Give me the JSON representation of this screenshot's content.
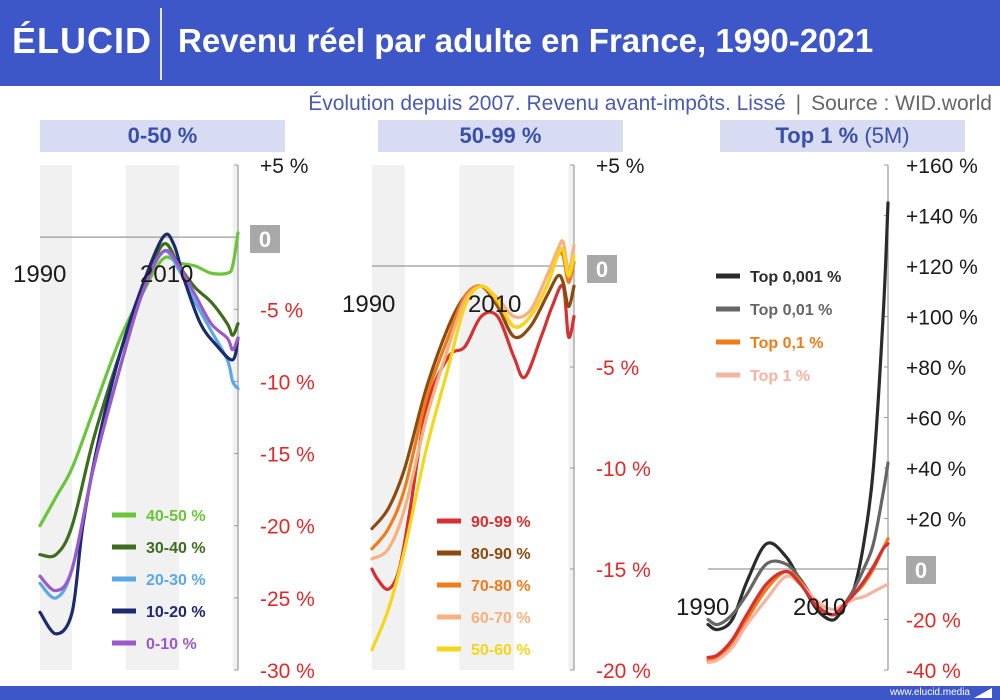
{
  "header": {
    "logo": "ÉLUCID",
    "title": "Revenu réel par adulte en France, 1990-2021"
  },
  "subtitle": {
    "main": "Évolution depuis 2007. Revenu avant-impôts. Lissé",
    "separator": "|",
    "source": "Source : WID.world"
  },
  "footer": {
    "url": "www.elucid.media"
  },
  "colors": {
    "brand": "#3d57c9",
    "panel_title_bg": "#d8dcf3",
    "negative_tick": "#e02a2a"
  },
  "chart_data": [
    {
      "type": "line",
      "title": "0-50 %",
      "x_tick": [
        "1990",
        "2010"
      ],
      "xlim": [
        1984,
        2021
      ],
      "ylim": [
        -30,
        5
      ],
      "y_ticks": [
        "+5 %",
        "0",
        "-5 %",
        "-10 %",
        "-15 %",
        "-20 %",
        "-25 %",
        "-30 %"
      ],
      "series": [
        {
          "name": "40-50 %",
          "color": "#6ac53a",
          "x": [
            1984,
            1987,
            1990,
            1994,
            1999,
            2003,
            2007,
            2010,
            2013,
            2016,
            2019,
            2020,
            2021
          ],
          "y": [
            -20,
            -18,
            -16,
            -12,
            -7,
            -4,
            -1.5,
            -1.8,
            -2,
            -2.5,
            -2.5,
            -2,
            0.3
          ]
        },
        {
          "name": "30-40 %",
          "color": "#3d6e1e",
          "x": [
            1984,
            1987,
            1990,
            1994,
            1999,
            2003,
            2007,
            2010,
            2013,
            2016,
            2019,
            2020,
            2021
          ],
          "y": [
            -22,
            -22,
            -20,
            -14,
            -8,
            -4,
            -0.5,
            -2,
            -3.5,
            -4.5,
            -6,
            -6.8,
            -6
          ]
        },
        {
          "name": "20-30 %",
          "color": "#5aa9e6",
          "x": [
            1984,
            1987,
            1990,
            1994,
            1999,
            2003,
            2007,
            2010,
            2013,
            2016,
            2019,
            2020,
            2021
          ],
          "y": [
            -24,
            -25,
            -23,
            -16,
            -9,
            -4,
            -1,
            -2.3,
            -4.5,
            -6.5,
            -8.5,
            -10,
            -10.5
          ]
        },
        {
          "name": "10-20 %",
          "color": "#1c2a6e",
          "x": [
            1984,
            1987,
            1990,
            1992,
            1995,
            1999,
            2003,
            2007,
            2009,
            2011,
            2014,
            2017,
            2020,
            2021
          ],
          "y": [
            -26,
            -27.5,
            -26,
            -20,
            -14,
            -8,
            -3.5,
            0,
            -0.5,
            -3,
            -6,
            -7.5,
            -8.5,
            -7
          ]
        },
        {
          "name": "0-10 %",
          "color": "#9b59c9",
          "x": [
            1984,
            1987,
            1990,
            1994,
            1999,
            2003,
            2007,
            2010,
            2013,
            2016,
            2019,
            2020,
            2021
          ],
          "y": [
            -23.5,
            -24.5,
            -23,
            -16,
            -9,
            -4,
            -1,
            -2,
            -4,
            -6,
            -7,
            -7.8,
            -7
          ]
        }
      ]
    },
    {
      "type": "line",
      "title": "50-99 %",
      "x_tick": [
        "1990",
        "2010"
      ],
      "xlim": [
        1984,
        2021
      ],
      "ylim": [
        -20,
        5
      ],
      "y_ticks": [
        "+5 %",
        "0",
        "-5 %",
        "-10 %",
        "-15 %",
        "-20 %"
      ],
      "series": [
        {
          "name": "90-99 %",
          "color": "#d63030",
          "x": [
            1984,
            1985,
            1987,
            1989,
            1991,
            1994,
            1998,
            2001,
            2004,
            2007,
            2010,
            2012,
            2015,
            2017,
            2019,
            2020,
            2021
          ],
          "y": [
            -15,
            -15.5,
            -16,
            -15,
            -12,
            -7,
            -4.5,
            -4,
            -2.5,
            -2.5,
            -4.5,
            -5.5,
            -3.5,
            -2,
            -1,
            -3.5,
            -2.5
          ]
        },
        {
          "name": "80-90 %",
          "color": "#8b4a10",
          "x": [
            1984,
            1987,
            1990,
            1994,
            1998,
            2001,
            2004,
            2007,
            2010,
            2013,
            2016,
            2018,
            2019,
            2020,
            2021
          ],
          "y": [
            -13,
            -12,
            -10,
            -6,
            -3,
            -1.5,
            -1,
            -2,
            -3.5,
            -3,
            -1.5,
            -0.5,
            -0.8,
            -2,
            -1
          ]
        },
        {
          "name": "70-80 %",
          "color": "#f07b1a",
          "x": [
            1984,
            1987,
            1990,
            1994,
            1998,
            2001,
            2004,
            2007,
            2010,
            2013,
            2016,
            2018,
            2019,
            2020,
            2021
          ],
          "y": [
            -14,
            -13,
            -11,
            -6.5,
            -3.5,
            -1.5,
            -1,
            -1.8,
            -3,
            -2.5,
            -1,
            0.5,
            0.5,
            -0.8,
            0.2
          ]
        },
        {
          "name": "60-70 %",
          "color": "#f6b17e",
          "x": [
            1984,
            1987,
            1990,
            1994,
            1998,
            2001,
            2004,
            2007,
            2010,
            2013,
            2016,
            2018,
            2019,
            2020,
            2021
          ],
          "y": [
            -14.5,
            -14,
            -12,
            -7.5,
            -4,
            -1.7,
            -1,
            -1.6,
            -2.5,
            -2.2,
            -0.5,
            0.8,
            1.2,
            -0.2,
            1
          ]
        },
        {
          "name": "50-60 %",
          "color": "#f7d51a",
          "x": [
            1984,
            1987,
            1990,
            1994,
            1998,
            2001,
            2004,
            2007,
            2010,
            2013,
            2016,
            2018,
            2019,
            2020,
            2021
          ],
          "y": [
            -19,
            -17,
            -14,
            -9,
            -5,
            -2,
            -1,
            -1.7,
            -3,
            -2.5,
            -1,
            0.5,
            0.8,
            -0.5,
            0.5
          ]
        }
      ]
    },
    {
      "type": "line",
      "title": "Top 1 %",
      "title_suffix": "(5M)",
      "x_tick": [
        "1990",
        "2010"
      ],
      "xlim": [
        1984,
        2021
      ],
      "ylim": [
        -40,
        160
      ],
      "y_ticks": [
        "+160 %",
        "+140 %",
        "+120 %",
        "+100 %",
        "+80 %",
        "+60 %",
        "+40 %",
        "+20 %",
        "0",
        "-20 %",
        "-40 %"
      ],
      "series": [
        {
          "name": "Top 0,001 %",
          "color": "#2b2b2b",
          "x": [
            1984,
            1986,
            1989,
            1992,
            1996,
            2000,
            2003,
            2006,
            2008,
            2010,
            2012,
            2014,
            2016,
            2018,
            2020,
            2021
          ],
          "y": [
            -22,
            -24,
            -20,
            -5,
            10,
            5,
            -5,
            -15,
            -19,
            -20,
            -15,
            -8,
            10,
            40,
            100,
            145
          ]
        },
        {
          "name": "Top 0,01 %",
          "color": "#666666",
          "x": [
            1984,
            1986,
            1989,
            1992,
            1996,
            2000,
            2003,
            2006,
            2008,
            2010,
            2012,
            2014,
            2016,
            2018,
            2020,
            2021
          ],
          "y": [
            -20,
            -22,
            -18,
            -10,
            2,
            2,
            -4,
            -13,
            -17,
            -18,
            -14,
            -8,
            0,
            10,
            30,
            42
          ]
        },
        {
          "name": "Top 0,1 %",
          "color": "#f07b1a",
          "x": [
            1984,
            1986,
            1989,
            1992,
            1996,
            2000,
            2003,
            2006,
            2008,
            2010,
            2012,
            2014,
            2016,
            2018,
            2020,
            2021
          ],
          "y": [
            -36,
            -35,
            -30,
            -20,
            -8,
            -1,
            -5,
            -13,
            -17,
            -18,
            -14,
            -10,
            -6,
            0,
            8,
            12
          ]
        },
        {
          "name": "Top 1 %",
          "color": "#f6b3a0",
          "x": [
            1984,
            1986,
            1989,
            1992,
            1996,
            2000,
            2003,
            2006,
            2008,
            2010,
            2012,
            2014,
            2016,
            2018,
            2020,
            2021
          ],
          "y": [
            -37,
            -36,
            -31,
            -22,
            -12,
            -3,
            -6,
            -12,
            -15,
            -16,
            -14,
            -12,
            -11,
            -9,
            -7,
            -6
          ]
        },
        {
          "name": "",
          "color": "#d63030",
          "x": [
            1984,
            1986,
            1989,
            1992,
            1996,
            2000,
            2003,
            2006,
            2008,
            2010,
            2012,
            2014,
            2016,
            2018,
            2020,
            2021
          ],
          "y": [
            -35,
            -34,
            -28,
            -18,
            -6,
            -1,
            -6,
            -14,
            -17,
            -18,
            -14,
            -10,
            -5,
            1,
            8,
            10
          ]
        }
      ]
    }
  ]
}
